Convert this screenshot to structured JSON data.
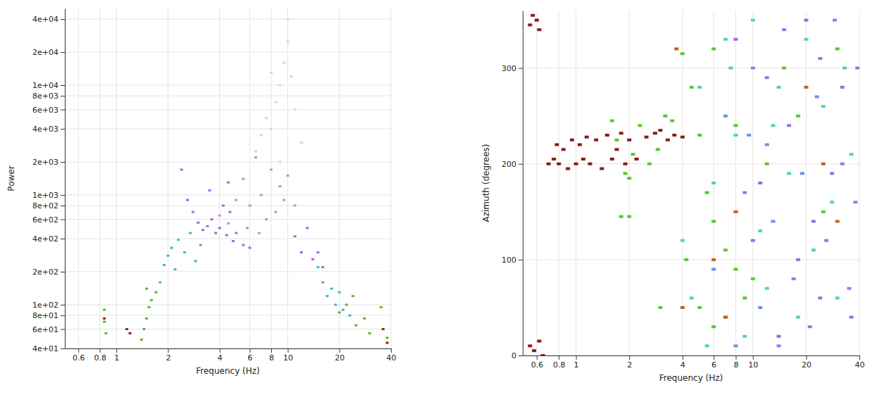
{
  "chart_data": [
    {
      "type": "scatter",
      "x_label": "Frequency (Hz)",
      "y_label": "Power",
      "log": true,
      "grid": true,
      "marker": "square",
      "xlim": [
        0.5,
        40
      ],
      "ylim": [
        40,
        50000
      ],
      "xticks": [
        0.6,
        0.8,
        1,
        2,
        4,
        6,
        8,
        10,
        20,
        40
      ],
      "yticks": [
        {
          "value": 40,
          "label": "4e+01"
        },
        {
          "value": 60,
          "label": "6e+01"
        },
        {
          "value": 80,
          "label": "8e+01"
        },
        {
          "value": 100,
          "label": "1e+02"
        },
        {
          "value": 200,
          "label": "2e+02"
        },
        {
          "value": 400,
          "label": "4e+02"
        },
        {
          "value": 600,
          "label": "6e+02"
        },
        {
          "value": 800,
          "label": "8e+02"
        },
        {
          "value": 1000,
          "label": "1e+03"
        },
        {
          "value": 2000,
          "label": "2e+03"
        },
        {
          "value": 4000,
          "label": "4e+03"
        },
        {
          "value": 6000,
          "label": "6e+03"
        },
        {
          "value": 8000,
          "label": "8e+03"
        },
        {
          "value": 10000,
          "label": "1e+04"
        },
        {
          "value": 20000,
          "label": "2e+04"
        },
        {
          "value": 40000,
          "label": "4e+04"
        }
      ],
      "series": [
        {
          "color": "#5cb82e",
          "x": [
            0.85,
            0.85,
            0.87,
            1.4,
            1.45,
            1.5,
            1.55,
            1.6,
            1.7,
            1.5,
            20,
            22,
            25,
            28,
            30,
            35,
            38,
            24
          ],
          "values": [
            90,
            70,
            55,
            48,
            60,
            75,
            95,
            110,
            130,
            140,
            85,
            100,
            65,
            75,
            55,
            95,
            50,
            120
          ]
        },
        {
          "color": "#3fb8c8",
          "x": [
            1.8,
            1.9,
            2,
            2.1,
            2.2,
            2.3,
            2.5,
            2.7,
            2.9,
            3.1,
            15,
            16,
            17,
            18,
            19,
            20,
            21,
            23
          ],
          "values": [
            160,
            230,
            280,
            330,
            210,
            390,
            300,
            450,
            250,
            350,
            220,
            160,
            120,
            140,
            100,
            130,
            90,
            80
          ]
        },
        {
          "color": "#9a6ae8",
          "x": [
            2.4,
            2.6,
            2.8,
            3,
            3.2,
            3.4,
            3.6,
            3.8,
            4,
            4.2,
            4.4,
            4.6,
            4.8,
            5,
            5.5,
            6,
            11,
            12,
            13,
            14,
            15,
            16,
            3.5,
            4.5
          ],
          "values": [
            1700,
            900,
            700,
            560,
            480,
            520,
            600,
            450,
            500,
            800,
            430,
            700,
            380,
            450,
            350,
            330,
            420,
            300,
            500,
            260,
            300,
            220,
            1100,
            1300
          ]
        },
        {
          "color": "#d783d8",
          "x": [
            4,
            4.5,
            5,
            5.5,
            6,
            6.5,
            7,
            7.5,
            8,
            8.5,
            9,
            9.5,
            10,
            11,
            5.8,
            6.8
          ],
          "values": [
            650,
            550,
            900,
            1400,
            800,
            2200,
            1000,
            600,
            1700,
            700,
            1200,
            900,
            1500,
            800,
            500,
            450
          ]
        },
        {
          "color": "#f2c6d6",
          "x": [
            6.5,
            7,
            7.5,
            8,
            8.5,
            9,
            9.5,
            10,
            10,
            10.5,
            11,
            12,
            9,
            8
          ],
          "values": [
            2500,
            3500,
            5000,
            4000,
            7000,
            10000,
            16000,
            25000,
            40000,
            12000,
            6000,
            3000,
            2000,
            13000
          ]
        },
        {
          "color": "#8a2a1a",
          "x": [
            0.85,
            1.15,
            1.2,
            36,
            38
          ],
          "values": [
            75,
            60,
            55,
            60,
            45
          ]
        }
      ]
    },
    {
      "type": "scatter",
      "x_label": "Frequency (Hz)",
      "y_label": "Azimuth (degrees)",
      "log": "x",
      "grid": true,
      "marker": "square",
      "xlim": [
        0.5,
        40
      ],
      "ylim": [
        0,
        360
      ],
      "xticks": [
        0.6,
        0.8,
        1,
        2,
        4,
        6,
        8,
        10,
        20,
        40
      ],
      "yticks": [
        0,
        100,
        200,
        300
      ],
      "series": [
        {
          "color": "#8c1c14",
          "x": [
            0.55,
            0.57,
            0.6,
            0.62,
            0.55,
            0.58,
            0.62,
            0.65,
            0.7,
            0.75,
            0.78,
            0.8,
            0.85,
            0.9,
            0.95,
            1,
            1.05,
            1.1,
            1.15,
            1.2,
            1.3,
            1.4,
            1.5,
            1.6,
            1.7,
            1.8,
            1.9,
            2,
            2.2,
            2.5,
            2.8,
            3,
            3.3,
            3.6,
            4
          ],
          "values": [
            345,
            355,
            350,
            340,
            10,
            5,
            15,
            0,
            200,
            205,
            220,
            200,
            215,
            195,
            225,
            200,
            220,
            205,
            228,
            200,
            225,
            195,
            230,
            205,
            215,
            232,
            200,
            225,
            205,
            228,
            232,
            235,
            225,
            230,
            228
          ]
        },
        {
          "color": "#5ac832",
          "x": [
            1.6,
            1.7,
            1.9,
            2,
            2.1,
            2.3,
            2.6,
            2.9,
            3.2,
            3.5,
            4,
            4.5,
            5,
            5.5,
            6,
            7,
            8,
            9,
            10,
            4.2,
            5,
            6,
            7,
            3,
            1.8,
            2,
            12,
            15,
            18,
            25,
            30,
            6,
            8
          ],
          "values": [
            245,
            225,
            190,
            185,
            210,
            240,
            200,
            215,
            250,
            245,
            315,
            280,
            230,
            170,
            140,
            110,
            90,
            60,
            80,
            100,
            50,
            30,
            40,
            50,
            145,
            145,
            200,
            300,
            250,
            150,
            320,
            320,
            240
          ]
        },
        {
          "color": "#4fd6b0",
          "x": [
            4,
            4.5,
            5,
            6,
            7,
            8,
            9,
            10,
            11,
            12,
            14,
            16,
            18,
            20,
            22,
            25,
            28,
            30,
            33,
            36,
            5.5,
            7.5,
            13
          ],
          "values": [
            120,
            60,
            280,
            180,
            330,
            230,
            20,
            350,
            130,
            70,
            280,
            190,
            40,
            330,
            110,
            260,
            160,
            60,
            300,
            210,
            10,
            300,
            240
          ]
        },
        {
          "color": "#6f8fe8",
          "x": [
            6,
            7,
            8,
            9,
            10,
            11,
            12,
            13,
            15,
            17,
            19,
            21,
            23,
            26,
            29,
            32,
            35,
            38,
            9.5,
            14,
            24
          ],
          "values": [
            90,
            250,
            10,
            170,
            300,
            50,
            220,
            140,
            340,
            80,
            190,
            30,
            270,
            120,
            350,
            200,
            70,
            160,
            230,
            10,
            310
          ]
        },
        {
          "color": "#8c74dc",
          "x": [
            8,
            10,
            12,
            14,
            16,
            18,
            20,
            24,
            28,
            32,
            36,
            39,
            11,
            22
          ],
          "values": [
            330,
            120,
            290,
            20,
            240,
            100,
            350,
            60,
            190,
            280,
            40,
            300,
            180,
            140
          ]
        },
        {
          "color": "#c8601e",
          "x": [
            3.7,
            6,
            8,
            7,
            20,
            25,
            30,
            4
          ],
          "values": [
            320,
            100,
            150,
            40,
            280,
            200,
            140,
            50
          ]
        }
      ]
    }
  ]
}
